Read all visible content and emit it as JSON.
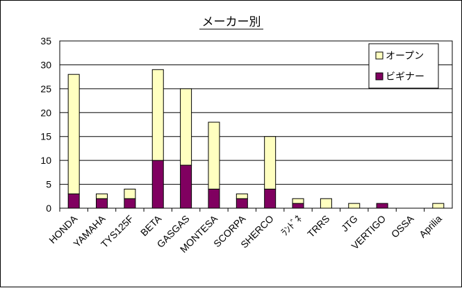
{
  "chart_data": {
    "type": "bar",
    "stacked": true,
    "title": "メーカー別",
    "xlabel": "",
    "ylabel": "",
    "ylim": [
      0,
      35
    ],
    "yticks": [
      0,
      5,
      10,
      15,
      20,
      25,
      30,
      35
    ],
    "grid": true,
    "legend": "top-right",
    "categories": [
      "HONDA",
      "YAMAHA",
      "TYS125F",
      "BETA",
      "GASGAS",
      "MONTESA",
      "SCORPA",
      "SHERCO",
      "ﾗﾝﾄﾞﾈ",
      "TRRS",
      "JTG",
      "VERTIGO",
      "OSSA",
      "Aprilia"
    ],
    "series": [
      {
        "name": "ビギナー",
        "color": "#800060",
        "values": [
          3,
          2,
          2,
          10,
          9,
          4,
          2,
          4,
          1,
          0,
          0,
          1,
          0,
          0
        ]
      },
      {
        "name": "オープン",
        "color": "#ffffc0",
        "values": [
          25,
          1,
          2,
          19,
          16,
          14,
          1,
          11,
          1,
          2,
          1,
          0,
          0,
          1
        ]
      }
    ],
    "colors": {
      "plot_background": "#ffffff",
      "grid": "#000000",
      "bar_border": "#000000"
    }
  }
}
